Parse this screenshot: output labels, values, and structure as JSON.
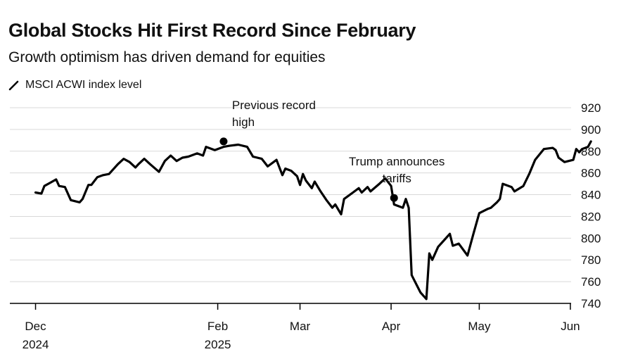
{
  "chart_data": {
    "type": "line",
    "title": "Global Stocks Hit First Record Since February",
    "subtitle": "Growth optimism has driven demand for equities",
    "legend": [
      {
        "name": "MSCI ACWI index level",
        "color": "#000000"
      }
    ],
    "legend_placement": "top-left",
    "ylim": [
      740,
      920
    ],
    "yticks": [
      740,
      760,
      780,
      800,
      820,
      840,
      860,
      880,
      900,
      920
    ],
    "y_axis_side": "right",
    "grid": true,
    "xlim": [
      "2024-11-28",
      "2025-06-07"
    ],
    "xticks": [
      {
        "date": "2024-12-01",
        "line1": "Dec",
        "line2": "2024"
      },
      {
        "date": "2025-02-01",
        "line1": "Feb",
        "line2": "2025"
      },
      {
        "date": "2025-03-01",
        "line1": "Mar",
        "line2": ""
      },
      {
        "date": "2025-04-01",
        "line1": "Apr",
        "line2": ""
      },
      {
        "date": "2025-05-01",
        "line1": "May",
        "line2": ""
      },
      {
        "date": "2025-06-01",
        "line1": "Jun",
        "line2": ""
      }
    ],
    "series": [
      {
        "name": "MSCI ACWI index level",
        "color": "#000000",
        "points": [
          [
            "2024-12-01",
            842
          ],
          [
            "2024-12-03",
            841
          ],
          [
            "2024-12-04",
            848
          ],
          [
            "2024-12-06",
            851
          ],
          [
            "2024-12-08",
            854
          ],
          [
            "2024-12-09",
            848
          ],
          [
            "2024-12-11",
            847
          ],
          [
            "2024-12-13",
            835
          ],
          [
            "2024-12-16",
            833
          ],
          [
            "2024-12-17",
            836
          ],
          [
            "2024-12-19",
            849
          ],
          [
            "2024-12-20",
            849
          ],
          [
            "2024-12-22",
            856
          ],
          [
            "2024-12-24",
            858
          ],
          [
            "2024-12-26",
            859
          ],
          [
            "2024-12-29",
            868
          ],
          [
            "2024-12-31",
            873
          ],
          [
            "2025-01-02",
            870
          ],
          [
            "2025-01-04",
            865
          ],
          [
            "2025-01-05",
            868
          ],
          [
            "2025-01-07",
            873
          ],
          [
            "2025-01-09",
            868
          ],
          [
            "2025-01-12",
            861
          ],
          [
            "2025-01-14",
            871
          ],
          [
            "2025-01-16",
            876
          ],
          [
            "2025-01-18",
            871
          ],
          [
            "2025-01-20",
            874
          ],
          [
            "2025-01-22",
            875
          ],
          [
            "2025-01-25",
            878
          ],
          [
            "2025-01-27",
            876
          ],
          [
            "2025-01-28",
            884
          ],
          [
            "2025-01-31",
            881
          ],
          [
            "2025-02-03",
            884
          ],
          [
            "2025-02-05",
            885
          ],
          [
            "2025-02-08",
            886
          ],
          [
            "2025-02-11",
            884
          ],
          [
            "2025-02-13",
            875
          ],
          [
            "2025-02-16",
            873
          ],
          [
            "2025-02-18",
            866
          ],
          [
            "2025-02-20",
            870
          ],
          [
            "2025-02-21",
            872
          ],
          [
            "2025-02-23",
            858
          ],
          [
            "2025-02-24",
            864
          ],
          [
            "2025-02-26",
            862
          ],
          [
            "2025-02-28",
            857
          ],
          [
            "2025-03-01",
            849
          ],
          [
            "2025-03-02",
            859
          ],
          [
            "2025-03-03",
            853
          ],
          [
            "2025-03-05",
            846
          ],
          [
            "2025-03-06",
            852
          ],
          [
            "2025-03-08",
            843
          ],
          [
            "2025-03-10",
            835
          ],
          [
            "2025-03-12",
            828
          ],
          [
            "2025-03-13",
            831
          ],
          [
            "2025-03-15",
            822
          ],
          [
            "2025-03-16",
            836
          ],
          [
            "2025-03-19",
            842
          ],
          [
            "2025-03-21",
            846
          ],
          [
            "2025-03-22",
            842
          ],
          [
            "2025-03-24",
            847
          ],
          [
            "2025-03-25",
            843
          ],
          [
            "2025-03-28",
            850
          ],
          [
            "2025-03-30",
            855
          ],
          [
            "2025-04-01",
            848
          ],
          [
            "2025-04-02",
            831
          ],
          [
            "2025-04-05",
            828
          ],
          [
            "2025-04-06",
            836
          ],
          [
            "2025-04-07",
            828
          ],
          [
            "2025-04-08",
            766
          ],
          [
            "2025-04-11",
            750
          ],
          [
            "2025-04-13",
            744
          ],
          [
            "2025-04-14",
            786
          ],
          [
            "2025-04-15",
            780
          ],
          [
            "2025-04-17",
            792
          ],
          [
            "2025-04-21",
            804
          ],
          [
            "2025-04-22",
            793
          ],
          [
            "2025-04-24",
            795
          ],
          [
            "2025-04-27",
            784
          ],
          [
            "2025-04-29",
            804
          ],
          [
            "2025-05-01",
            823
          ],
          [
            "2025-05-04",
            827
          ],
          [
            "2025-05-05",
            828
          ],
          [
            "2025-05-07",
            833
          ],
          [
            "2025-05-08",
            836
          ],
          [
            "2025-05-09",
            850
          ],
          [
            "2025-05-12",
            847
          ],
          [
            "2025-05-13",
            843
          ],
          [
            "2025-05-16",
            848
          ],
          [
            "2025-05-18",
            859
          ],
          [
            "2025-05-20",
            872
          ],
          [
            "2025-05-23",
            882
          ],
          [
            "2025-05-26",
            883
          ],
          [
            "2025-05-27",
            881
          ],
          [
            "2025-05-28",
            874
          ],
          [
            "2025-05-30",
            870
          ],
          [
            "2025-06-02",
            872
          ],
          [
            "2025-06-03",
            882
          ],
          [
            "2025-06-04",
            879
          ],
          [
            "2025-06-05",
            882
          ],
          [
            "2025-06-07",
            884
          ],
          [
            "2025-06-08",
            889
          ]
        ]
      }
    ],
    "annotations": [
      {
        "date": "2025-02-03",
        "value": 889,
        "lines": [
          "Previous record",
          "high"
        ],
        "anchor": "start"
      },
      {
        "date": "2025-04-02",
        "value": 837,
        "lines": [
          "Trump announces",
          "tariffs"
        ],
        "anchor": "middle"
      }
    ]
  }
}
